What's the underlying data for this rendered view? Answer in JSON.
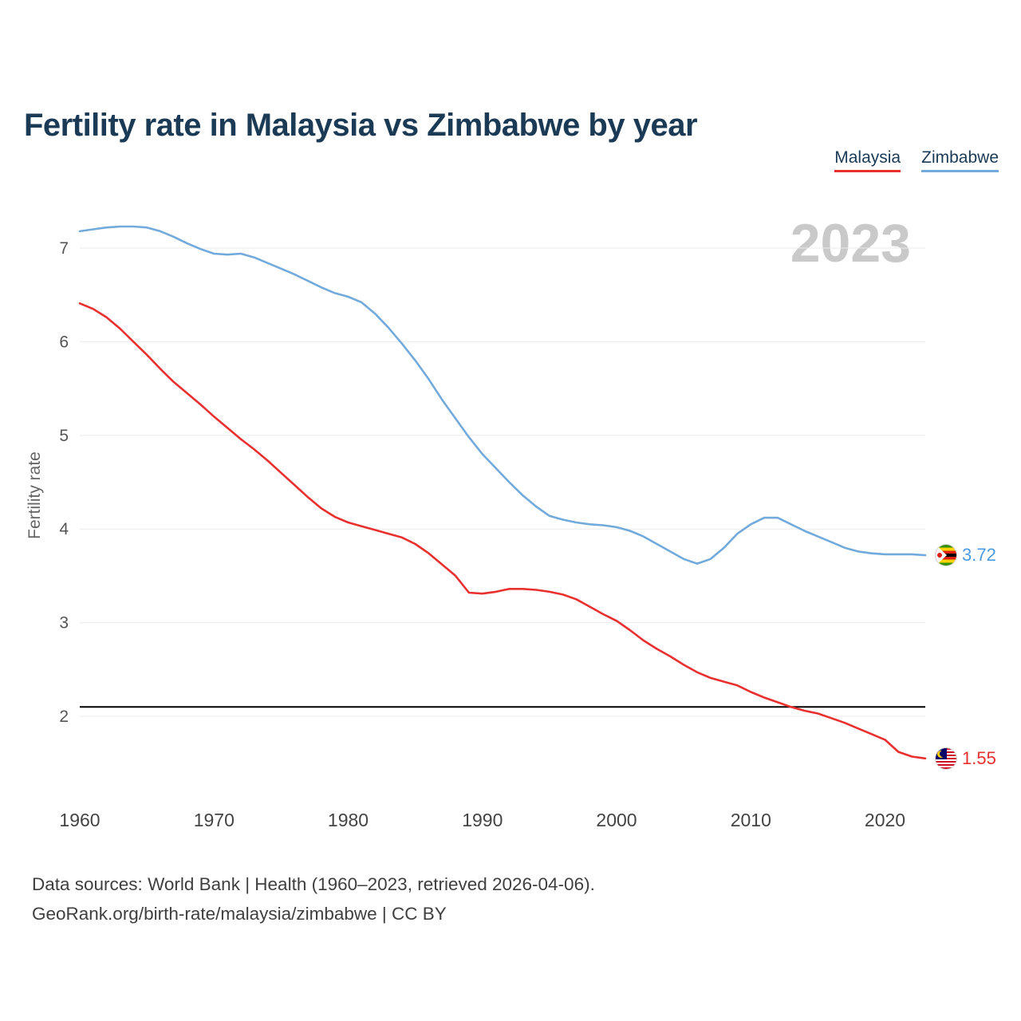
{
  "page": {
    "title": "Fertility rate in Malaysia vs Zimbabwe by year",
    "watermark": "2023"
  },
  "legend": [
    {
      "label": "Malaysia",
      "color": "#e8302f"
    },
    {
      "label": "Zimbabwe",
      "color": "#72aadc"
    }
  ],
  "end_labels": [
    {
      "series": "Zimbabwe",
      "value": "3.72",
      "color": "#4a9be0"
    },
    {
      "series": "Malaysia",
      "value": "1.55",
      "color": "#e8302f"
    }
  ],
  "footer": {
    "line1": "Data sources: World Bank | Health (1960–2023, retrieved 2026-04-06).",
    "line2": "GeoRank.org/birth-rate/malaysia/zimbabwe | CC BY"
  },
  "chart_data": {
    "type": "line",
    "title": "Fertility rate in Malaysia vs Zimbabwe by year",
    "xlabel": "",
    "ylabel": "Fertility rate",
    "xlim": [
      1960,
      2023
    ],
    "ylim": [
      1.4,
      7.5
    ],
    "grid": true,
    "legend_position": "top-right",
    "x_ticks": [
      1960,
      1970,
      1980,
      1990,
      2000,
      2010,
      2020
    ],
    "y_ticks": [
      2,
      3,
      4,
      5,
      6,
      7
    ],
    "reference_line": {
      "value": 2.1,
      "color": "#000000"
    },
    "years": [
      1960,
      1961,
      1962,
      1963,
      1964,
      1965,
      1966,
      1967,
      1968,
      1969,
      1970,
      1971,
      1972,
      1973,
      1974,
      1975,
      1976,
      1977,
      1978,
      1979,
      1980,
      1981,
      1982,
      1983,
      1984,
      1985,
      1986,
      1987,
      1988,
      1989,
      1990,
      1991,
      1992,
      1993,
      1994,
      1995,
      1996,
      1997,
      1998,
      1999,
      2000,
      2001,
      2002,
      2003,
      2004,
      2005,
      2006,
      2007,
      2008,
      2009,
      2010,
      2011,
      2012,
      2013,
      2014,
      2015,
      2016,
      2017,
      2018,
      2019,
      2020,
      2021,
      2022,
      2023
    ],
    "series": [
      {
        "name": "Malaysia",
        "color": "#e8302f",
        "values": [
          6.41,
          6.35,
          6.26,
          6.14,
          6.0,
          5.86,
          5.71,
          5.57,
          5.45,
          5.33,
          5.2,
          5.08,
          4.96,
          4.85,
          4.73,
          4.6,
          4.47,
          4.34,
          4.22,
          4.13,
          4.07,
          4.03,
          3.99,
          3.95,
          3.91,
          3.84,
          3.74,
          3.62,
          3.5,
          3.32,
          3.31,
          3.33,
          3.36,
          3.36,
          3.35,
          3.33,
          3.3,
          3.25,
          3.17,
          3.09,
          3.02,
          2.92,
          2.81,
          2.72,
          2.64,
          2.55,
          2.47,
          2.41,
          2.37,
          2.33,
          2.26,
          2.2,
          2.15,
          2.1,
          2.06,
          2.03,
          1.98,
          1.93,
          1.87,
          1.81,
          1.75,
          1.62,
          1.57,
          1.55
        ]
      },
      {
        "name": "Zimbabwe",
        "color": "#72aadc",
        "values": [
          7.18,
          7.2,
          7.22,
          7.23,
          7.23,
          7.22,
          7.18,
          7.12,
          7.05,
          6.99,
          6.94,
          6.93,
          6.94,
          6.9,
          6.84,
          6.78,
          6.72,
          6.65,
          6.58,
          6.52,
          6.48,
          6.42,
          6.3,
          6.15,
          5.98,
          5.8,
          5.6,
          5.38,
          5.18,
          4.98,
          4.8,
          4.65,
          4.5,
          4.36,
          4.24,
          4.14,
          4.1,
          4.07,
          4.05,
          4.04,
          4.02,
          3.98,
          3.92,
          3.84,
          3.76,
          3.68,
          3.63,
          3.68,
          3.8,
          3.95,
          4.05,
          4.12,
          4.12,
          4.05,
          3.98,
          3.92,
          3.86,
          3.8,
          3.76,
          3.74,
          3.73,
          3.73,
          3.73,
          3.72
        ]
      }
    ]
  }
}
